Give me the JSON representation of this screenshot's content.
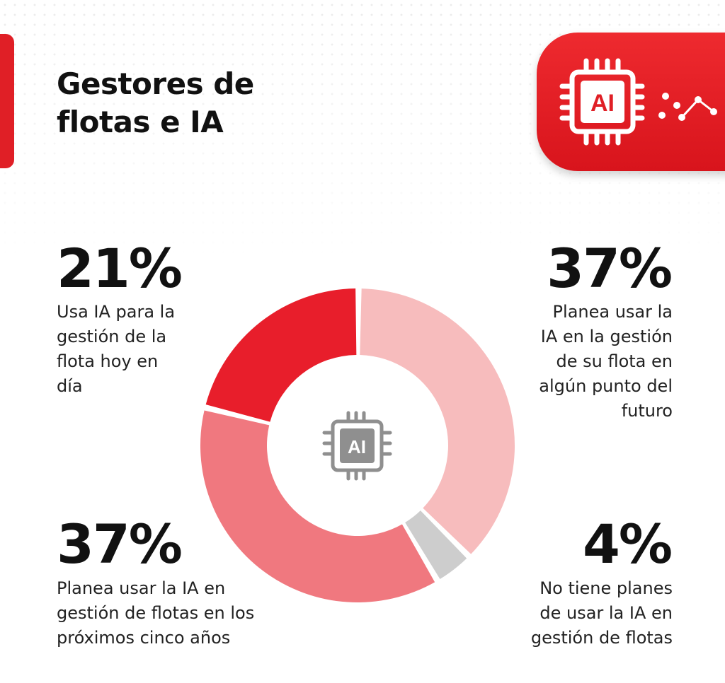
{
  "header": {
    "title_line1": "Gestores de",
    "title_line2": "flotas e IA",
    "badge_text": "AI",
    "badge_icon": "ai-chip-icon"
  },
  "colors": {
    "accent_red": "#e01f26",
    "slice_colors": [
      "#e81e2b",
      "#f7bcbd",
      "#cdcdcd",
      "#f0787f"
    ]
  },
  "chart_data": {
    "type": "pie",
    "subtype": "donut",
    "center_label": "AI",
    "center_icon": "ai-chip-icon",
    "slices": [
      {
        "value": 21,
        "label": "21%",
        "description": [
          "Usa IA para la",
          "gestión de la",
          "flota hoy en",
          "día"
        ]
      },
      {
        "value": 37,
        "label": "37%",
        "description": [
          "Planea usar la",
          "IA en la gestión",
          "de su flota en",
          "algún punto del",
          "futuro"
        ]
      },
      {
        "value": 4,
        "label": "4%",
        "description": [
          "No tiene planes",
          "de usar la IA en",
          "gestión de flotas"
        ]
      },
      {
        "value": 37,
        "label": "37%",
        "description": [
          "Planea usar la IA en",
          "gestión de flotas en los",
          "próximos cinco años"
        ]
      }
    ]
  }
}
